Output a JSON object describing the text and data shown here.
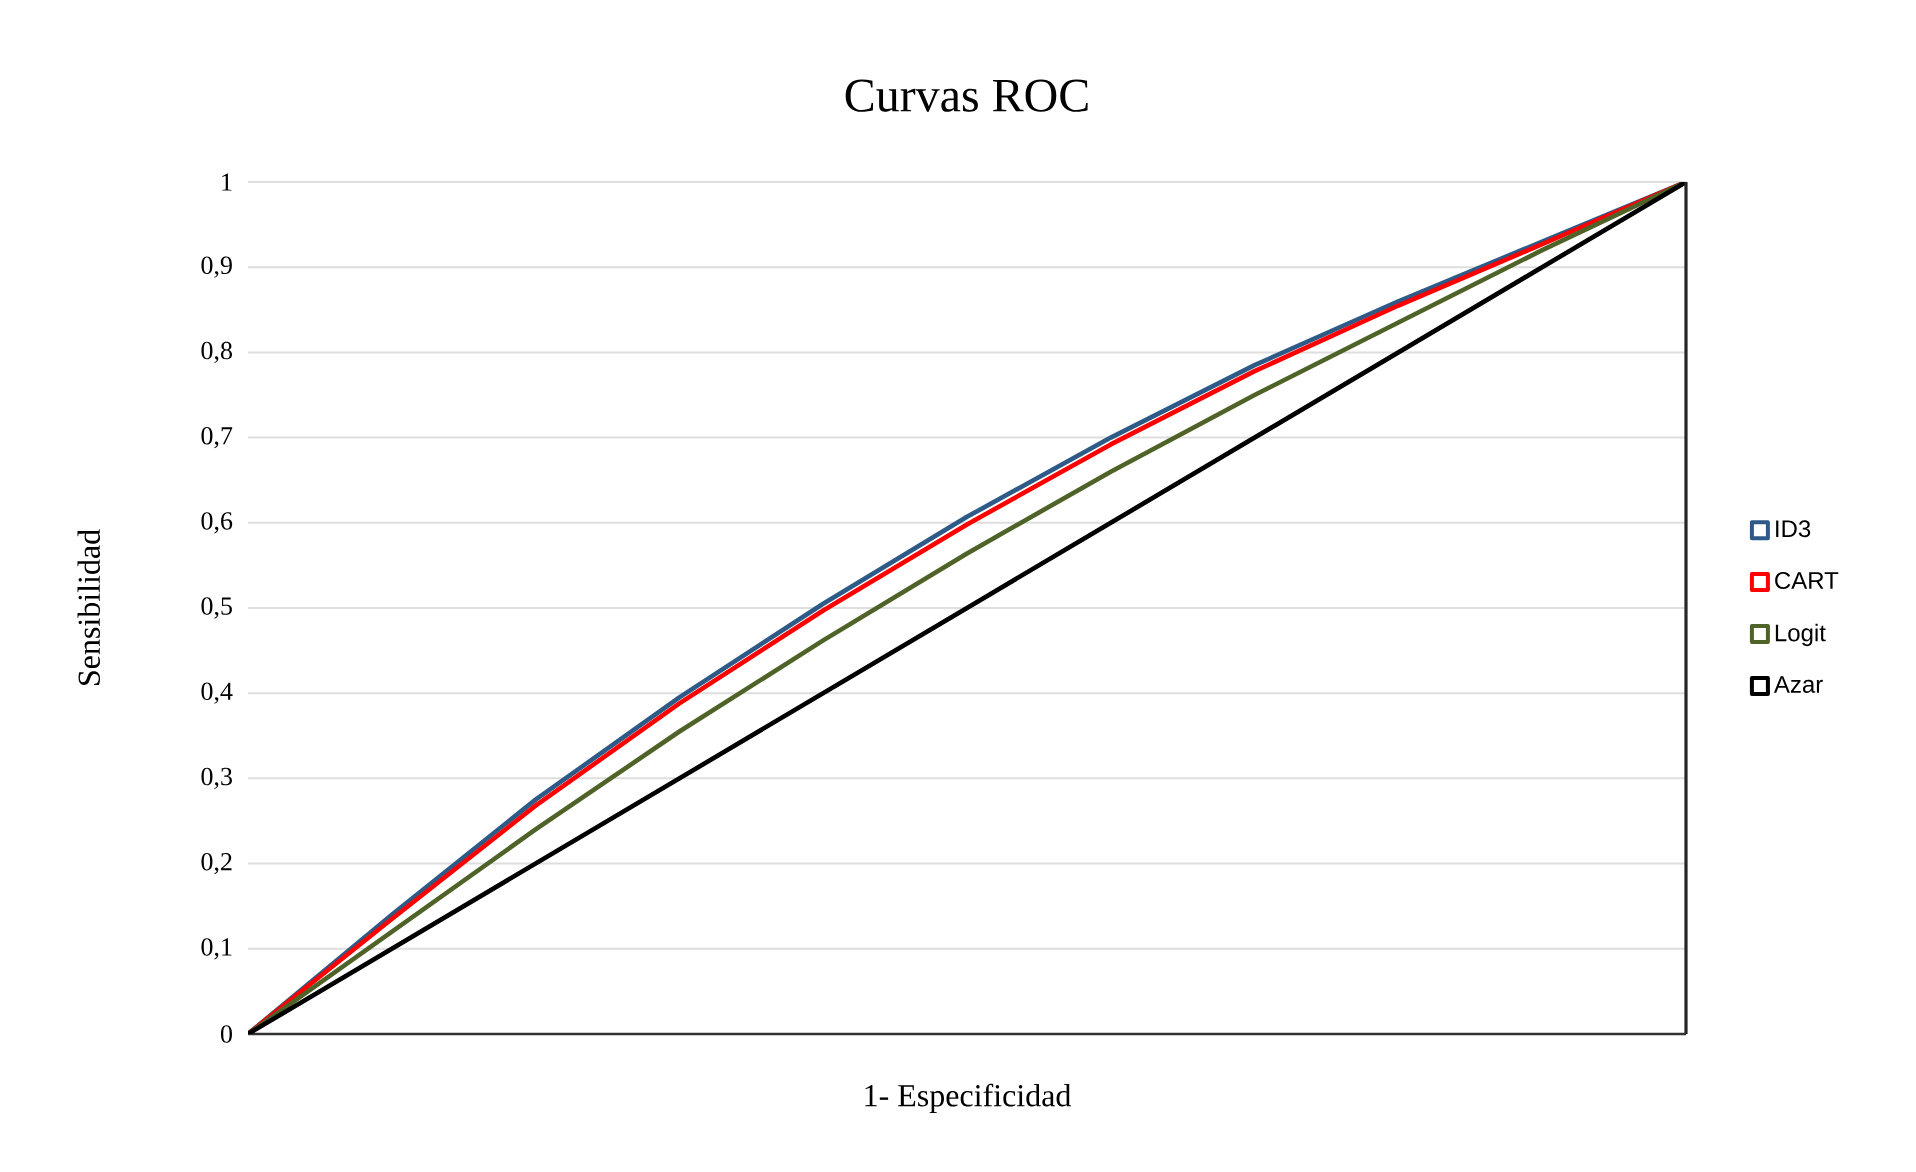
{
  "chart_data": {
    "type": "line",
    "title": "Curvas ROC",
    "xlabel": "1- Especificidad",
    "ylabel": "Sensibilidad",
    "categories": [
      null,
      null,
      null,
      null,
      null,
      null,
      null,
      null,
      null,
      null,
      null
    ],
    "ylim": [
      0,
      1
    ],
    "yticks": [
      {
        "value": 0,
        "label": "0"
      },
      {
        "value": 0.1,
        "label": "0,1"
      },
      {
        "value": 0.2,
        "label": "0,2"
      },
      {
        "value": 0.3,
        "label": "0,3"
      },
      {
        "value": 0.4,
        "label": "0,4"
      },
      {
        "value": 0.5,
        "label": "0,5"
      },
      {
        "value": 0.6,
        "label": "0,6"
      },
      {
        "value": 0.7,
        "label": "0,7"
      },
      {
        "value": 0.8,
        "label": "0,8"
      },
      {
        "value": 0.9,
        "label": "0,9"
      },
      {
        "value": 1,
        "label": "1"
      }
    ],
    "grid": "y",
    "legend": "right",
    "marker": "none",
    "line_style": "solid",
    "series": [
      {
        "name": "ID3",
        "color": "#2e5a87",
        "values": [
          0,
          0.14,
          0.275,
          0.395,
          0.505,
          0.607,
          0.7,
          0.785,
          0.86,
          0.93,
          1
        ]
      },
      {
        "name": "CART",
        "color": "#ff0000",
        "values": [
          0,
          0.135,
          0.268,
          0.388,
          0.497,
          0.598,
          0.692,
          0.778,
          0.855,
          0.927,
          1
        ]
      },
      {
        "name": "Logit",
        "color": "#4f6228",
        "values": [
          0,
          0.12,
          0.24,
          0.355,
          0.462,
          0.564,
          0.66,
          0.75,
          0.835,
          0.92,
          1
        ]
      },
      {
        "name": "Azar",
        "color": "#000000",
        "values": [
          0,
          0.1,
          0.2,
          0.3,
          0.4,
          0.5,
          0.6,
          0.7,
          0.8,
          0.9,
          1
        ]
      }
    ]
  }
}
